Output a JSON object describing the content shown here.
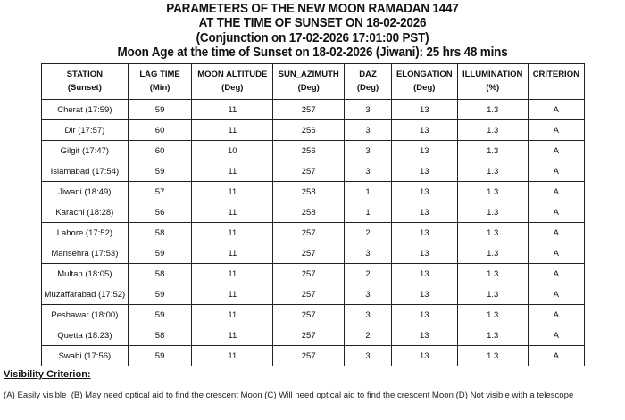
{
  "title_lines": [
    "PARAMETERS OF THE NEW MOON RAMADAN 1447",
    "AT THE TIME OF SUNSET ON 18-02-2026",
    "(Conjunction on 17-02-2026 17:01:00 PST)",
    "Moon Age at the time of Sunset on 18-02-2026 (Jiwani): 25 hrs 48 mins"
  ],
  "table": {
    "headers": [
      {
        "top": "STATION",
        "bottom": "(Sunset)"
      },
      {
        "top": "LAG TIME",
        "bottom": "(Min)"
      },
      {
        "top": "MOON ALTITUDE",
        "bottom": "(Deg)"
      },
      {
        "top": "SUN_AZIMUTH",
        "bottom": "(Deg)"
      },
      {
        "top": "DAZ",
        "bottom": "(Deg)"
      },
      {
        "top": "ELONGATION",
        "bottom": "(Deg)"
      },
      {
        "top": "ILLUMINATION",
        "bottom": "(%)"
      },
      {
        "top": "CRITERION",
        "bottom": ""
      }
    ],
    "rows": [
      [
        "Cherat (17:59)",
        "59",
        "11",
        "257",
        "3",
        "13",
        "1.3",
        "A"
      ],
      [
        "Dir (17:57)",
        "60",
        "11",
        "256",
        "3",
        "13",
        "1.3",
        "A"
      ],
      [
        "Gilgit (17:47)",
        "60",
        "10",
        "256",
        "3",
        "13",
        "1.3",
        "A"
      ],
      [
        "Islamabad (17:54)",
        "59",
        "11",
        "257",
        "3",
        "13",
        "1.3",
        "A"
      ],
      [
        "Jiwani (18:49)",
        "57",
        "11",
        "258",
        "1",
        "13",
        "1.3",
        "A"
      ],
      [
        "Karachi (18:28)",
        "56",
        "11",
        "258",
        "1",
        "13",
        "1.3",
        "A"
      ],
      [
        "Lahore (17:52)",
        "58",
        "11",
        "257",
        "2",
        "13",
        "1.3",
        "A"
      ],
      [
        "Mansehra (17:53)",
        "59",
        "11",
        "257",
        "3",
        "13",
        "1.3",
        "A"
      ],
      [
        "Multan (18:05)",
        "58",
        "11",
        "257",
        "2",
        "13",
        "1.3",
        "A"
      ],
      [
        "Muzaffarabad (17:52)",
        "59",
        "11",
        "257",
        "3",
        "13",
        "1.3",
        "A"
      ],
      [
        "Peshawar (18:00)",
        "59",
        "11",
        "257",
        "3",
        "13",
        "1.3",
        "A"
      ],
      [
        "Quetta (18:23)",
        "58",
        "11",
        "257",
        "2",
        "13",
        "1.3",
        "A"
      ],
      [
        "Swabi (17:56)",
        "59",
        "11",
        "257",
        "3",
        "13",
        "1.3",
        "A"
      ]
    ]
  },
  "criterion": {
    "title": "Visibility Criterion:",
    "items": [
      "(A) Easily visible",
      "(B) May need optical aid to find the crescent Moon",
      "(C) Will need optical aid to find the crescent Moon",
      "(D) Not visible with a telescope"
    ]
  }
}
